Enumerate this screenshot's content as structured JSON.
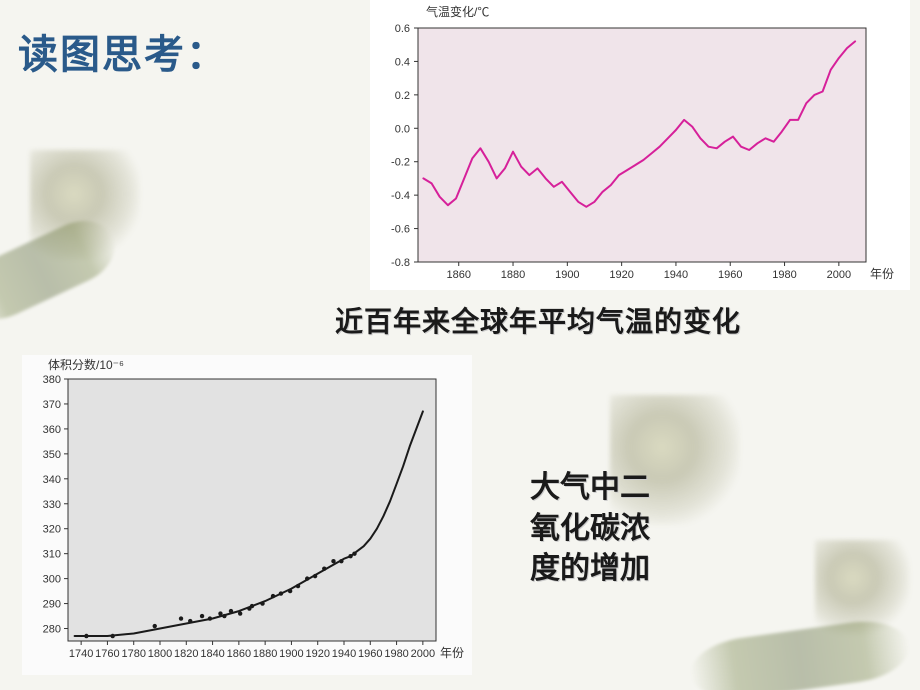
{
  "title": "读图思考：",
  "chart1": {
    "caption": "近百年来全球年平均气温的变化",
    "type": "line",
    "ylabel": "气温变化/℃",
    "xlabel": "年份",
    "xlim": [
      1845,
      2010
    ],
    "ylim": [
      -0.8,
      0.6
    ],
    "xticks": [
      1860,
      1880,
      1900,
      1920,
      1940,
      1960,
      1980,
      2000
    ],
    "yticks": [
      -0.8,
      -0.6,
      -0.4,
      -0.2,
      0.0,
      0.2,
      0.4,
      0.6
    ],
    "plot_bg": "#f0e4ea",
    "outer_bg": "#ffffff",
    "axis_color": "#333333",
    "line_color": "#d6209a",
    "line_width": 2,
    "data": [
      [
        1847,
        -0.3
      ],
      [
        1850,
        -0.33
      ],
      [
        1853,
        -0.41
      ],
      [
        1856,
        -0.46
      ],
      [
        1859,
        -0.42
      ],
      [
        1862,
        -0.3
      ],
      [
        1865,
        -0.18
      ],
      [
        1868,
        -0.12
      ],
      [
        1871,
        -0.2
      ],
      [
        1874,
        -0.3
      ],
      [
        1877,
        -0.24
      ],
      [
        1880,
        -0.14
      ],
      [
        1883,
        -0.23
      ],
      [
        1886,
        -0.28
      ],
      [
        1889,
        -0.24
      ],
      [
        1892,
        -0.3
      ],
      [
        1895,
        -0.35
      ],
      [
        1898,
        -0.32
      ],
      [
        1901,
        -0.38
      ],
      [
        1904,
        -0.44
      ],
      [
        1907,
        -0.47
      ],
      [
        1910,
        -0.44
      ],
      [
        1913,
        -0.38
      ],
      [
        1916,
        -0.34
      ],
      [
        1919,
        -0.28
      ],
      [
        1922,
        -0.25
      ],
      [
        1925,
        -0.22
      ],
      [
        1928,
        -0.19
      ],
      [
        1931,
        -0.15
      ],
      [
        1934,
        -0.11
      ],
      [
        1937,
        -0.06
      ],
      [
        1940,
        -0.01
      ],
      [
        1943,
        0.05
      ],
      [
        1946,
        0.01
      ],
      [
        1949,
        -0.06
      ],
      [
        1952,
        -0.11
      ],
      [
        1955,
        -0.12
      ],
      [
        1958,
        -0.08
      ],
      [
        1961,
        -0.05
      ],
      [
        1964,
        -0.11
      ],
      [
        1967,
        -0.13
      ],
      [
        1970,
        -0.09
      ],
      [
        1973,
        -0.06
      ],
      [
        1976,
        -0.08
      ],
      [
        1979,
        -0.02
      ],
      [
        1982,
        0.05
      ],
      [
        1985,
        0.05
      ],
      [
        1988,
        0.15
      ],
      [
        1991,
        0.2
      ],
      [
        1994,
        0.22
      ],
      [
        1997,
        0.35
      ],
      [
        2000,
        0.42
      ],
      [
        2003,
        0.48
      ],
      [
        2006,
        0.52
      ]
    ]
  },
  "chart2": {
    "caption_lines": [
      "大气中二",
      "氧化碳浓",
      "度的增加"
    ],
    "type": "line-scatter",
    "ylabel": "体积分数/10⁻⁶",
    "xlabel": "年份",
    "xlim": [
      1730,
      2010
    ],
    "ylim": [
      275,
      380
    ],
    "xticks": [
      1740,
      1760,
      1780,
      1800,
      1820,
      1840,
      1860,
      1880,
      1900,
      1920,
      1940,
      1960,
      1980,
      2000
    ],
    "yticks": [
      280,
      290,
      300,
      310,
      320,
      330,
      340,
      350,
      360,
      370,
      380
    ],
    "plot_bg": "#e2e2e2",
    "outer_bg": "#fbfbfb",
    "axis_color": "#333333",
    "line_color": "#1a1a1a",
    "line_width": 2,
    "marker_color": "#1a1a1a",
    "marker_size": 2.2,
    "line_data": [
      [
        1735,
        277
      ],
      [
        1760,
        277
      ],
      [
        1780,
        278
      ],
      [
        1800,
        280
      ],
      [
        1820,
        282
      ],
      [
        1840,
        284
      ],
      [
        1860,
        287
      ],
      [
        1880,
        291
      ],
      [
        1900,
        296
      ],
      [
        1910,
        299
      ],
      [
        1920,
        302
      ],
      [
        1930,
        305
      ],
      [
        1940,
        308
      ],
      [
        1945,
        309
      ],
      [
        1950,
        311
      ],
      [
        1955,
        313
      ],
      [
        1960,
        316
      ],
      [
        1965,
        320
      ],
      [
        1970,
        325
      ],
      [
        1975,
        331
      ],
      [
        1980,
        338
      ],
      [
        1985,
        345
      ],
      [
        1990,
        353
      ],
      [
        1995,
        360
      ],
      [
        2000,
        367
      ]
    ],
    "scatter_data": [
      [
        1744,
        277
      ],
      [
        1764,
        277
      ],
      [
        1796,
        281
      ],
      [
        1816,
        284
      ],
      [
        1823,
        283
      ],
      [
        1832,
        285
      ],
      [
        1838,
        284
      ],
      [
        1846,
        286
      ],
      [
        1849,
        285
      ],
      [
        1854,
        287
      ],
      [
        1861,
        286
      ],
      [
        1868,
        288
      ],
      [
        1870,
        289
      ],
      [
        1878,
        290
      ],
      [
        1886,
        293
      ],
      [
        1892,
        294
      ],
      [
        1899,
        295
      ],
      [
        1905,
        297
      ],
      [
        1912,
        300
      ],
      [
        1918,
        301
      ],
      [
        1925,
        304
      ],
      [
        1932,
        307
      ],
      [
        1938,
        307
      ],
      [
        1945,
        309
      ],
      [
        1948,
        310
      ]
    ]
  }
}
